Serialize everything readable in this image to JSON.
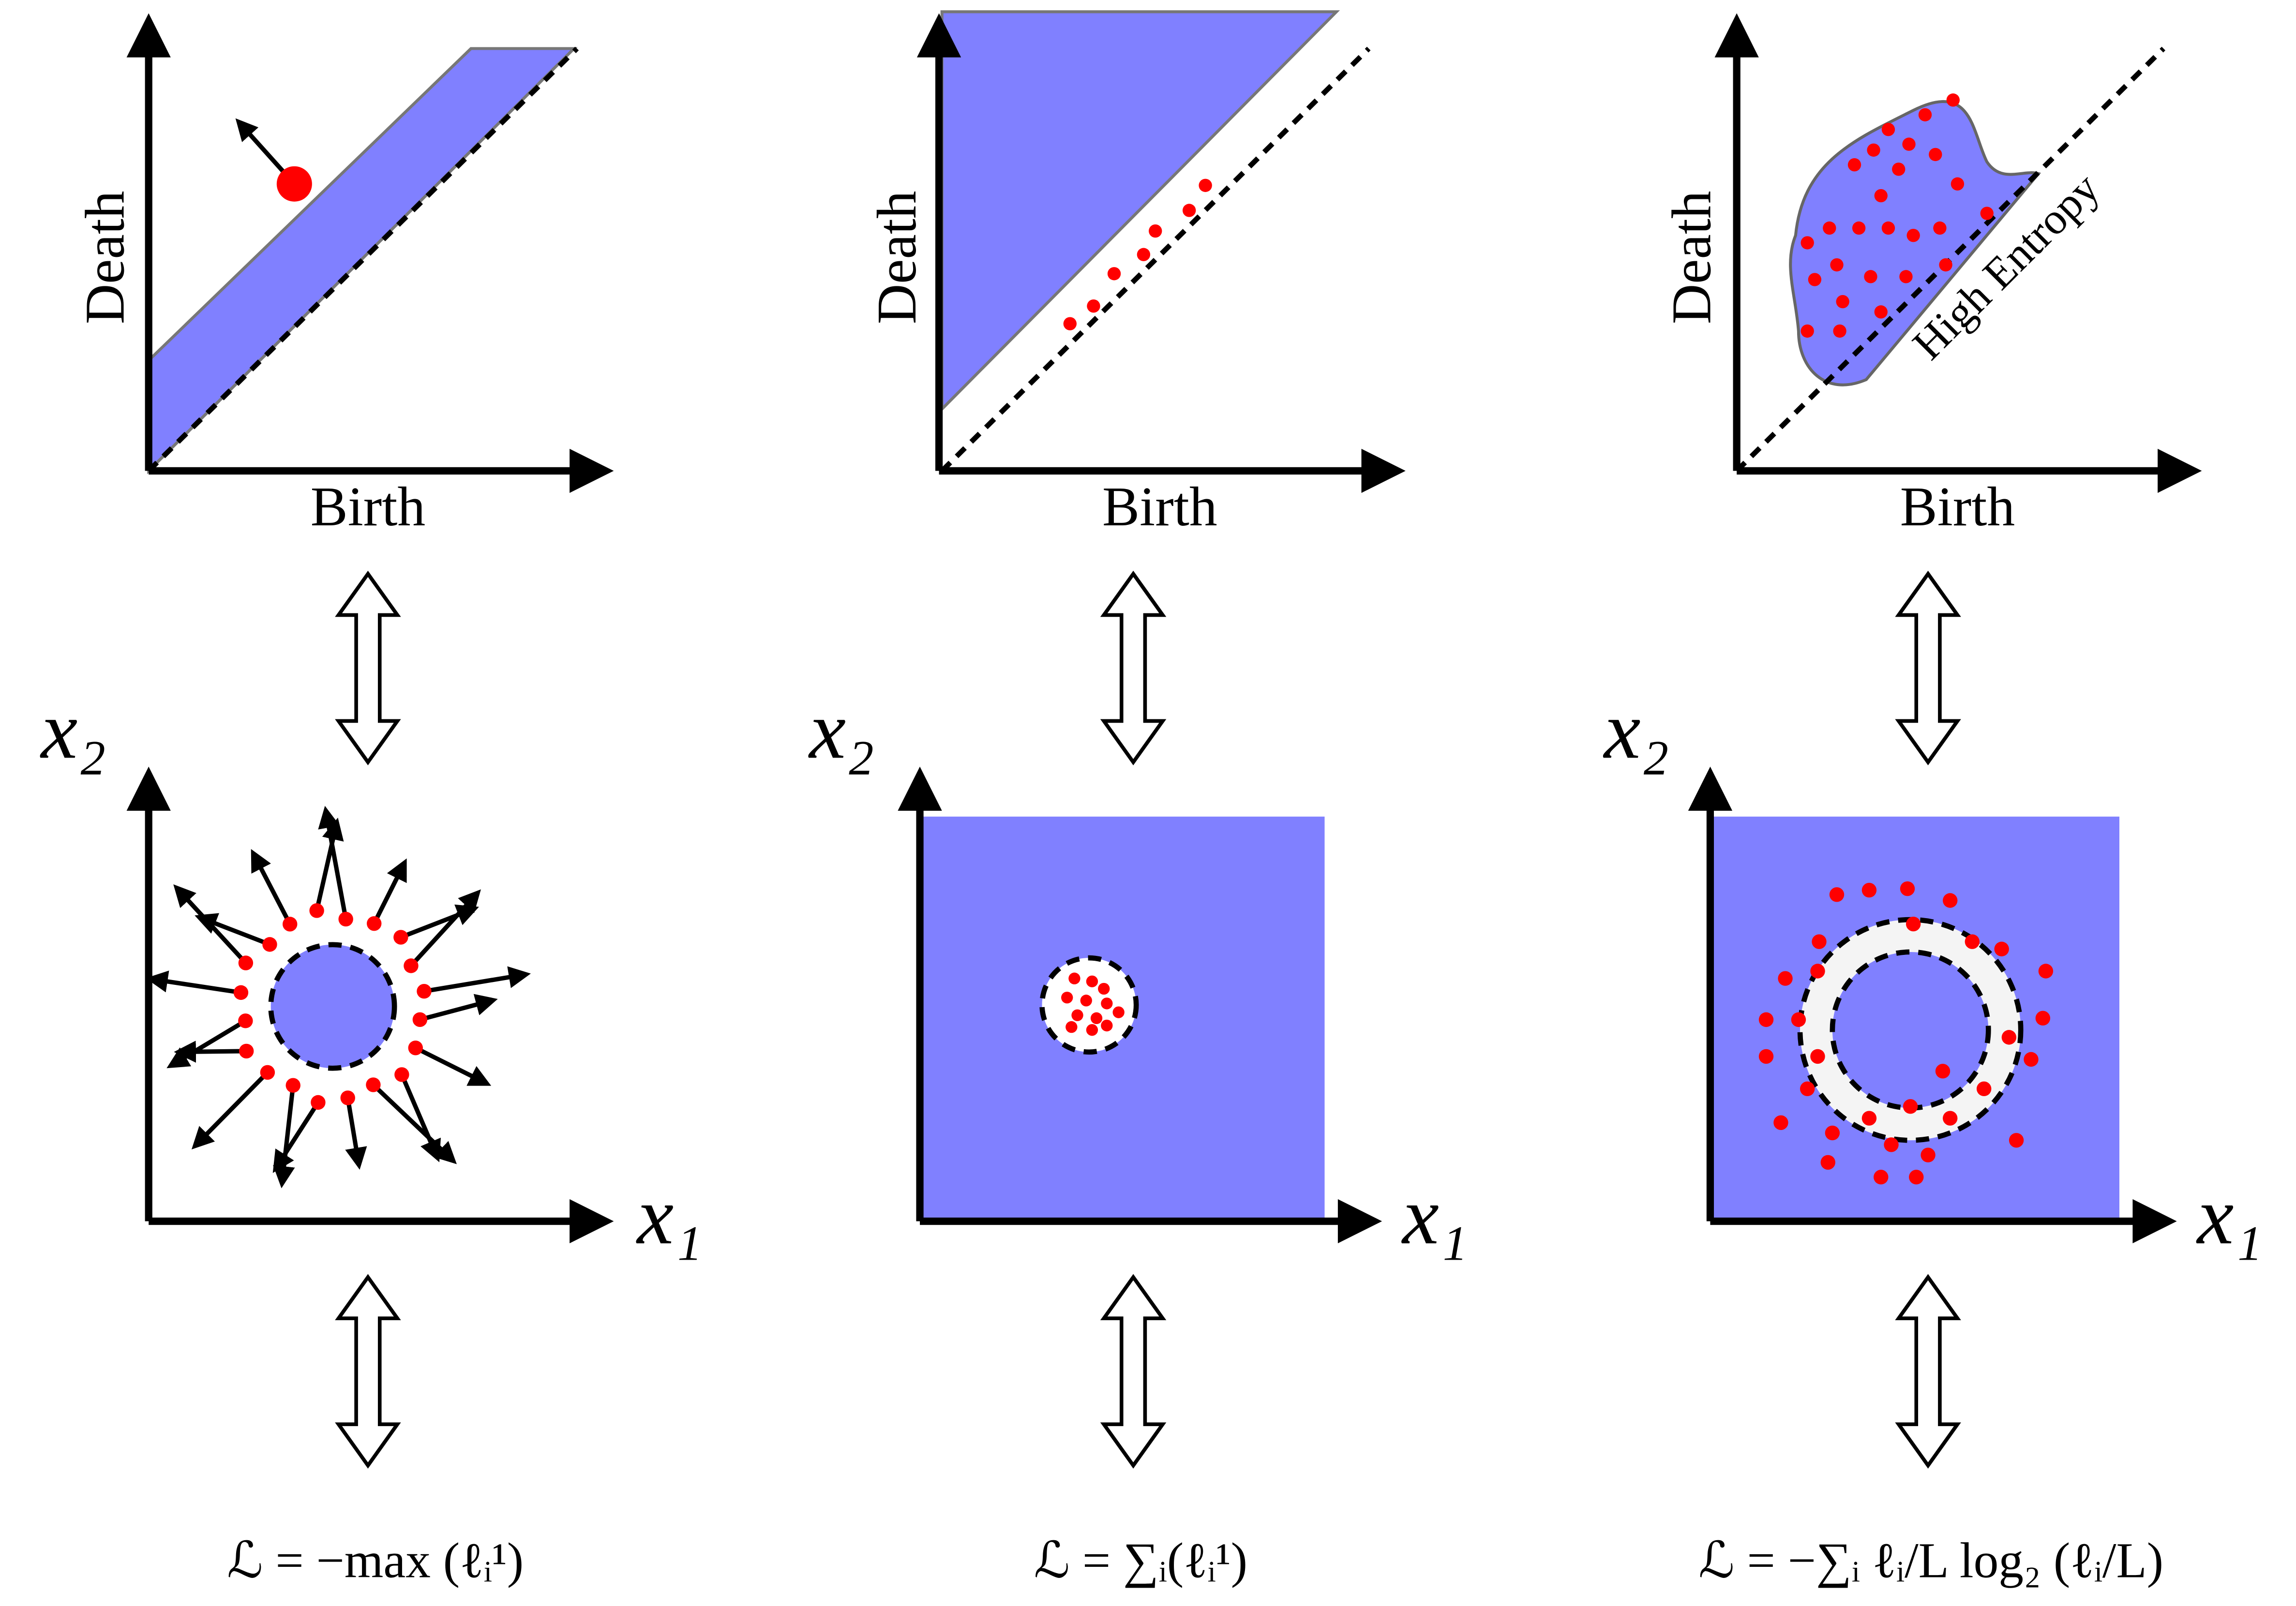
{
  "panels": [
    {
      "diagram": {
        "y_label": "Death",
        "x_label": "Birth"
      },
      "space": {
        "y_label": "x₂",
        "x_label": "x₁"
      },
      "loss": "ℒ = −max (ℓᵢ¹)"
    },
    {
      "diagram": {
        "y_label": "Death",
        "x_label": "Birth"
      },
      "space": {
        "y_label": "x₂",
        "x_label": "x₁"
      },
      "loss": "ℒ = ∑ᵢ(ℓᵢ¹)"
    },
    {
      "diagram": {
        "y_label": "Death",
        "x_label": "Birth",
        "annotation": "High Entropy"
      },
      "space": {
        "y_label": "x₂",
        "x_label": "x₁"
      },
      "loss": "ℒ = −∑ᵢ ℓᵢ/L log₂ (ℓᵢ/L)"
    }
  ]
}
